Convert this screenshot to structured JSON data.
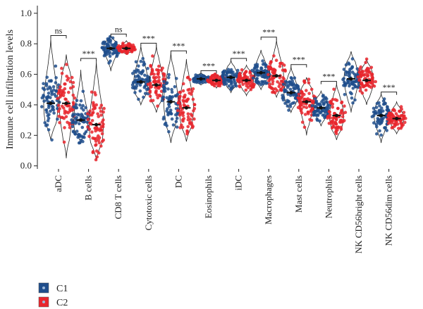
{
  "chart_data": {
    "type": "violin",
    "ylabel": "Immune cell infiltration levels",
    "ylim": [
      -0.02,
      1.05
    ],
    "yticks": [
      "0.0",
      "0.2",
      "0.4",
      "0.6",
      "0.8",
      "1.0"
    ],
    "categories": [
      "aDC",
      "B cells",
      "CD8 T cells",
      "Cytotoxic cells",
      "DC",
      "Eosinophils",
      "iDC",
      "Macrophages",
      "Mast cells",
      "Neutrophils",
      "NK CD56bright cells",
      "NK CD56dim cells"
    ],
    "significance": [
      "ns",
      "***",
      "ns",
      "***",
      "***",
      "***",
      "***",
      "***",
      "***",
      "***",
      "",
      "***"
    ],
    "series": [
      {
        "name": "C1",
        "color": "#1f4e8c",
        "median": [
          0.41,
          0.3,
          0.77,
          0.55,
          0.42,
          0.57,
          0.58,
          0.61,
          0.48,
          0.38,
          0.57,
          0.33
        ],
        "min": [
          0.17,
          0.15,
          0.62,
          0.4,
          0.15,
          0.53,
          0.48,
          0.5,
          0.35,
          0.26,
          0.35,
          0.15
        ],
        "max": [
          0.84,
          0.63,
          0.85,
          0.79,
          0.74,
          0.61,
          0.69,
          0.76,
          0.65,
          0.49,
          0.75,
          0.47
        ]
      },
      {
        "name": "C2",
        "color": "#e8262d",
        "median": [
          0.41,
          0.27,
          0.77,
          0.53,
          0.38,
          0.56,
          0.56,
          0.59,
          0.42,
          0.33,
          0.56,
          0.31
        ],
        "min": [
          0.05,
          0.04,
          0.73,
          0.35,
          0.16,
          0.51,
          0.46,
          0.45,
          0.2,
          0.17,
          0.4,
          0.21
        ],
        "max": [
          0.73,
          0.69,
          0.82,
          0.79,
          0.7,
          0.6,
          0.66,
          0.83,
          0.58,
          0.54,
          0.7,
          0.42
        ]
      }
    ],
    "legend": {
      "position": "bottom-left",
      "entries": [
        "C1",
        "C2"
      ]
    },
    "grid": false
  }
}
